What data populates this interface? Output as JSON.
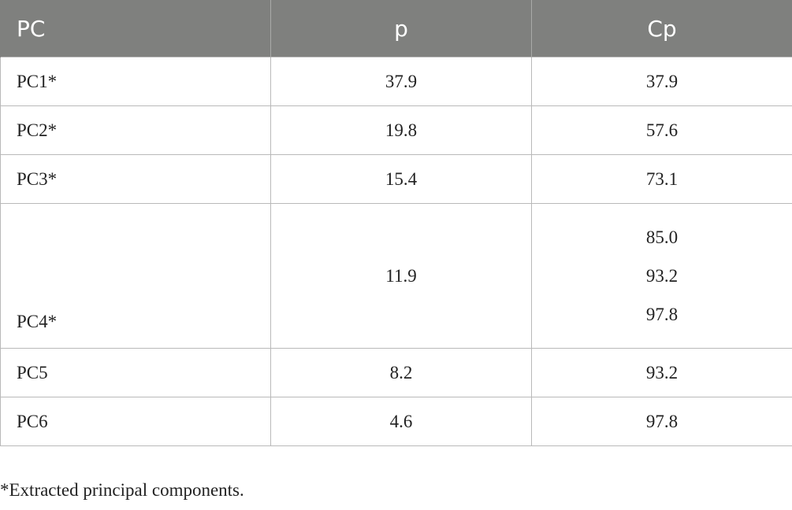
{
  "table": {
    "headers": [
      "PC",
      "p",
      "Cp"
    ],
    "rows": [
      {
        "pc": "PC1*",
        "p": "37.9",
        "cp": "37.9"
      },
      {
        "pc": "PC2*",
        "p": "19.8",
        "cp": "57.6"
      },
      {
        "pc": "PC3*",
        "p": "15.4",
        "cp": "73.1"
      },
      {
        "pc": "PC4*",
        "p": "11.9",
        "cp": [
          "85.0",
          "93.2",
          "97.8"
        ]
      },
      {
        "pc": "PC5",
        "p": "8.2",
        "cp": "93.2"
      },
      {
        "pc": "PC6",
        "p": "4.6",
        "cp": "97.8"
      }
    ]
  },
  "footnote": "*Extracted principal components."
}
